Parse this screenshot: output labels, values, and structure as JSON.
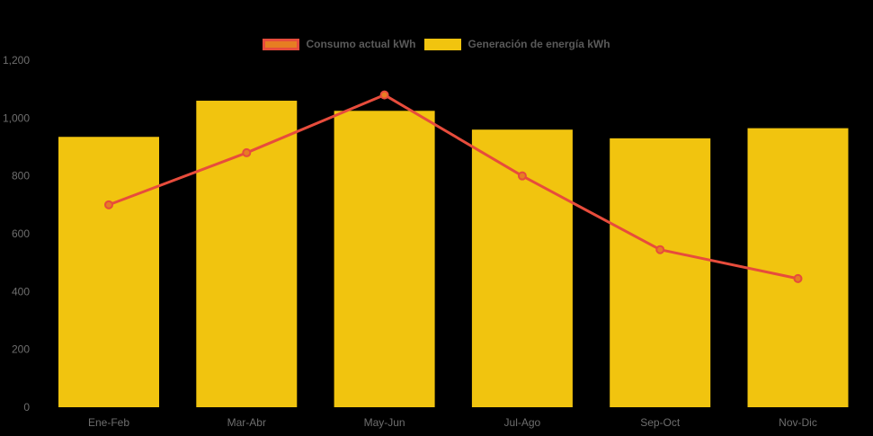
{
  "background_color": "#000000",
  "legend": {
    "position": "top",
    "items": [
      {
        "label": "Consumo actual kWh",
        "swatch_fill": "#e67e22",
        "swatch_border": "#e74c3c",
        "swatch_border_width": 3
      },
      {
        "label": "Generación de energía kWh",
        "swatch_fill": "#f1c40f",
        "swatch_border": "#f1c40f",
        "swatch_border_width": 0
      }
    ]
  },
  "chart_data": {
    "type": "bar",
    "subtype": "combo-bar-line",
    "title": "",
    "xlabel": "",
    "ylabel": "",
    "categories": [
      "Ene-Feb",
      "Mar-Abr",
      "May-Jun",
      "Jul-Ago",
      "Sep-Oct",
      "Nov-Dic"
    ],
    "series": [
      {
        "name": "Generación de energía kWh",
        "type": "bar",
        "values": [
          935,
          1060,
          1025,
          960,
          930,
          965
        ],
        "color": "#f1c40f"
      },
      {
        "name": "Consumo actual kWh",
        "type": "line",
        "values": [
          700,
          880,
          1080,
          800,
          545,
          445
        ],
        "line_color": "#e74c3c",
        "line_width": 3,
        "point_color": "#e67e22",
        "point_radius": 4
      }
    ],
    "ylim": [
      0,
      1200
    ],
    "yticks": [
      0,
      200,
      400,
      600,
      800,
      1000,
      1200
    ],
    "ytick_labels": [
      "0",
      "200",
      "400",
      "600",
      "800",
      "1,000",
      "1,200"
    ],
    "grid": false,
    "legend_position": "top",
    "axis_text_color": "#6e6e6e",
    "background": "#000000"
  }
}
